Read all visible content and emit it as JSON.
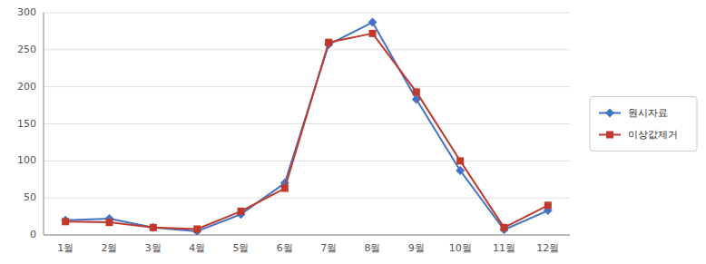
{
  "chart_data": {
    "type": "line",
    "categories": [
      "1월",
      "2월",
      "3월",
      "4월",
      "5월",
      "6월",
      "7월",
      "8월",
      "9월",
      "10월",
      "11월",
      "12월"
    ],
    "series": [
      {
        "name": "원시자료",
        "color": "#4472C4",
        "marker": "diamond",
        "values": [
          20,
          22,
          10,
          5,
          28,
          70,
          257,
          287,
          183,
          87,
          7,
          33
        ]
      },
      {
        "name": "이상값제거",
        "color": "#C0392B",
        "marker": "square",
        "values": [
          18,
          17,
          10,
          8,
          32,
          63,
          260,
          272,
          193,
          100,
          10,
          40
        ]
      }
    ],
    "ylim": [
      0,
      300
    ],
    "yticks": [
      0,
      50,
      100,
      150,
      200,
      250,
      300
    ],
    "grid": true,
    "legend": "right"
  }
}
